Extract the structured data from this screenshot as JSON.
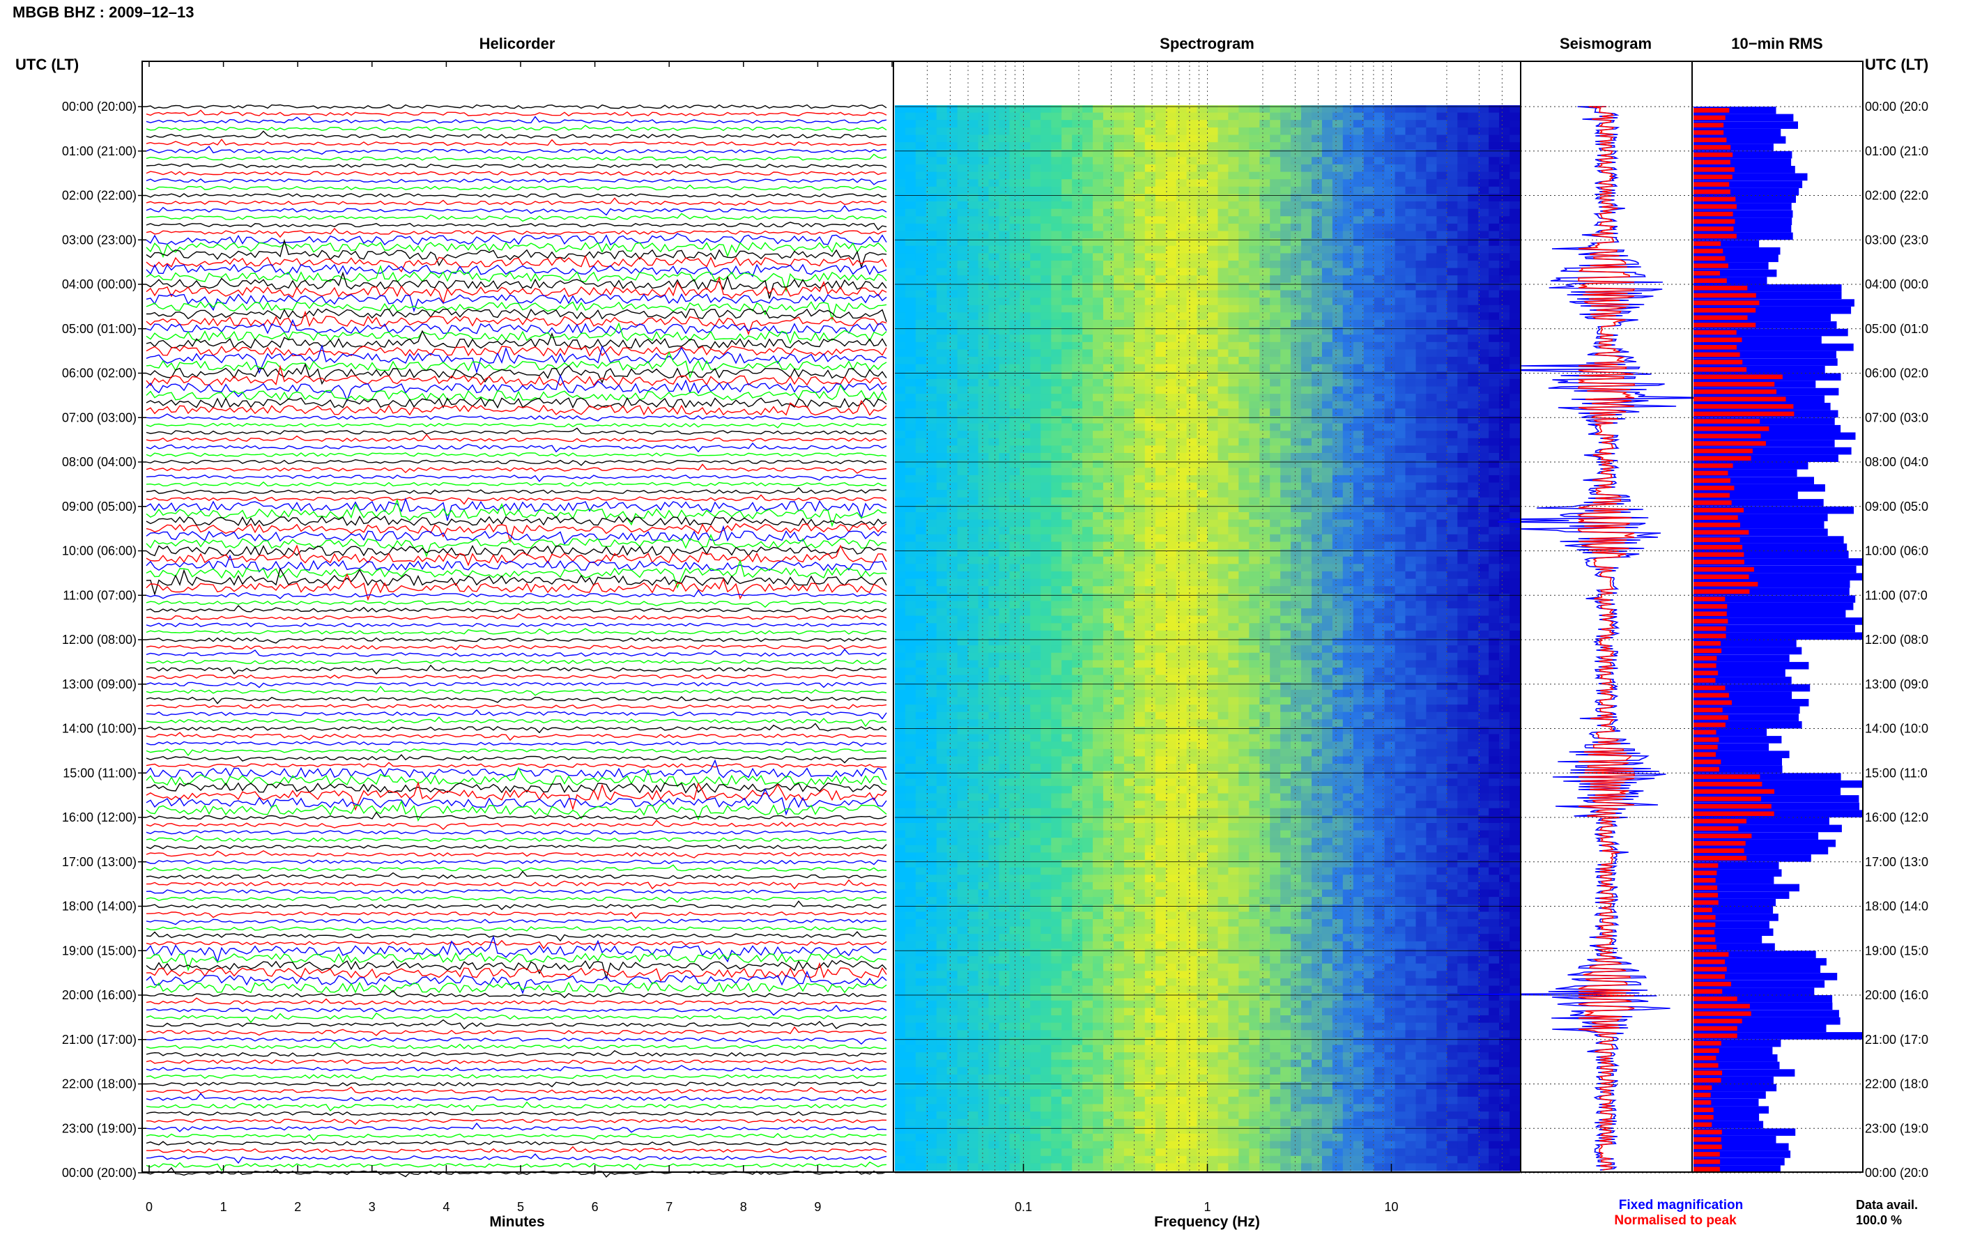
{
  "station_title": "MBGB BHZ : 2009–12–13",
  "left_axis_title": "UTC (LT)",
  "right_axis_title": "UTC (LT)",
  "panels": {
    "helicorder": "Helicorder",
    "spectrogram": "Spectrogram",
    "seismogram": "Seismogram",
    "rms": "10−min RMS"
  },
  "time_labels": [
    "00:00 (20:00)",
    "01:00 (21:00)",
    "02:00 (22:00)",
    "03:00 (23:00)",
    "04:00 (00:00)",
    "05:00 (01:00)",
    "06:00 (02:00)",
    "07:00 (03:00)",
    "08:00 (04:00)",
    "09:00 (05:00)",
    "10:00 (06:00)",
    "11:00 (07:00)",
    "12:00 (08:00)",
    "13:00 (09:00)",
    "14:00 (10:00)",
    "15:00 (11:00)",
    "16:00 (12:00)",
    "17:00 (13:00)",
    "18:00 (14:00)",
    "19:00 (15:00)",
    "20:00 (16:00)",
    "21:00 (17:00)",
    "22:00 (18:00)",
    "23:00 (19:00)",
    "00:00 (20:00)"
  ],
  "right_time_labels": [
    "00:00 (20:0",
    "01:00 (21:0",
    "02:00 (22:0",
    "03:00 (23:0",
    "04:00 (00:0",
    "05:00 (01:0",
    "06:00 (02:0",
    "07:00 (03:0",
    "08:00 (04:0",
    "09:00 (05:0",
    "10:00 (06:0",
    "11:00 (07:0",
    "12:00 (08:0",
    "13:00 (09:0",
    "14:00 (10:0",
    "15:00 (11:0",
    "16:00 (12:0",
    "17:00 (13:0",
    "18:00 (14:0",
    "19:00 (15:0",
    "20:00 (16:0",
    "21:00 (17:0",
    "22:00 (18:0",
    "23:00 (19:0",
    "00:00 (20:0"
  ],
  "minutes_ticks": [
    "0",
    "1",
    "2",
    "3",
    "4",
    "5",
    "6",
    "7",
    "8",
    "9"
  ],
  "minutes_label": "Minutes",
  "freq_ticks": [
    "0.1",
    "1",
    "10"
  ],
  "freq_label": "Frequency (Hz)",
  "legend": {
    "fixed": "Fixed magnification",
    "normalised": "Normalised to peak",
    "fixed_color": "#0000ff",
    "normalised_color": "#ff0000"
  },
  "data_avail_label": "Data avail.",
  "data_avail_value": "100.0 %",
  "colors": {
    "trace_cycle": [
      "#000000",
      "#ff0000",
      "#0000ff",
      "#00ff00"
    ],
    "spectro_low": "#00c8ff",
    "spectro_mid": "#e8f000",
    "spectro_high": "#0000c0",
    "rms_fixed": "#0000ff",
    "rms_norm": "#ff0000"
  },
  "chart_data": [
    {
      "type": "line",
      "name": "Helicorder",
      "x_axis": {
        "label": "Minutes",
        "range": [
          0,
          10
        ],
        "ticks": [
          0,
          1,
          2,
          3,
          4,
          5,
          6,
          7,
          8,
          9
        ]
      },
      "y_axis": {
        "label": "UTC (LT)",
        "range_hours": [
          0,
          24
        ],
        "lines_per_hour": 6
      },
      "series_colors_cycle": [
        "black",
        "red",
        "blue",
        "green"
      ],
      "high_activity_hours": [
        3,
        4,
        5,
        6,
        9,
        10,
        15,
        19
      ]
    },
    {
      "type": "heatmap",
      "name": "Spectrogram",
      "x_axis": {
        "label": "Frequency (Hz)",
        "scale": "log",
        "ticks": [
          0.1,
          1,
          10
        ],
        "range": [
          0.02,
          50
        ]
      },
      "y_axis": {
        "range_hours": [
          0,
          24
        ]
      },
      "peak_energy_band_hz": [
        0.2,
        1
      ]
    },
    {
      "type": "line",
      "name": "Seismogram",
      "legend": [
        "Fixed magnification",
        "Normalised to peak"
      ],
      "high_activity_hours": [
        4,
        6.3,
        9.5,
        15,
        20
      ]
    },
    {
      "type": "bar",
      "name": "10-min RMS",
      "orientation": "horizontal",
      "bins_per_hour": 6,
      "hourly_fixed_rms_relative": [
        0.55,
        0.6,
        0.65,
        0.45,
        0.95,
        0.85,
        0.8,
        0.95,
        0.7,
        0.85,
        0.95,
        0.9,
        0.6,
        0.65,
        0.5,
        0.95,
        0.8,
        0.55,
        0.45,
        0.75,
        0.9,
        0.55,
        0.45,
        0.55
      ],
      "hourly_normalised_rms_relative": [
        0.2,
        0.22,
        0.25,
        0.18,
        0.35,
        0.3,
        0.55,
        0.4,
        0.22,
        0.3,
        0.35,
        0.22,
        0.15,
        0.2,
        0.15,
        0.42,
        0.3,
        0.15,
        0.12,
        0.2,
        0.3,
        0.15,
        0.12,
        0.15
      ],
      "data_availability_percent": 100.0
    }
  ]
}
